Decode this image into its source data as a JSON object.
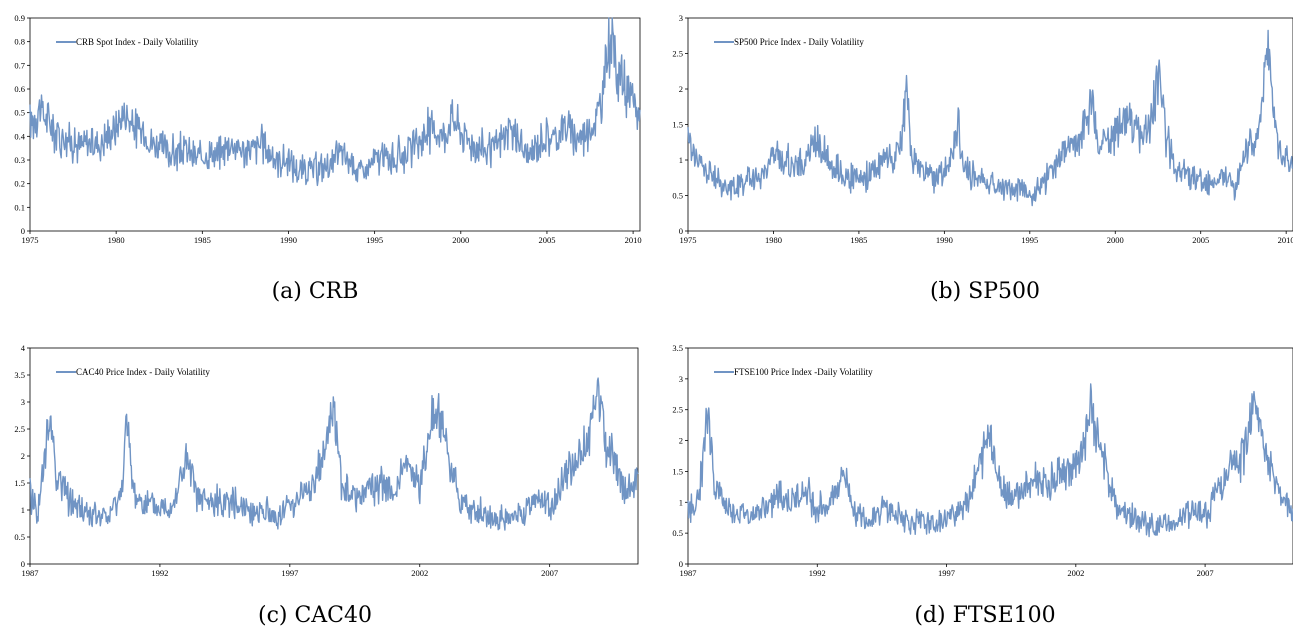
{
  "colors": {
    "series": "#7094c4",
    "axis": "#000000"
  },
  "chart_data": [
    {
      "type": "line",
      "caption": "(a) CRB",
      "legend": "CRB Spot Index - Daily Volatility",
      "legend_position": "top-left",
      "xlim": [
        1975,
        2010.4
      ],
      "ylim": [
        0,
        0.9
      ],
      "xticks": [
        "1975",
        "1980",
        "1985",
        "1990",
        "1995",
        "2000",
        "2005",
        "2010"
      ],
      "yticks": [
        "0",
        "0.1",
        "0.2",
        "0.3",
        "0.4",
        "0.5",
        "0.6",
        "0.7",
        "0.8",
        "0.9"
      ],
      "grid": false,
      "series": [
        {
          "name": "CRB Spot Index - Daily Volatility",
          "x": [
            1975,
            1975.5,
            1976,
            1976.5,
            1977,
            1977.5,
            1978,
            1978.5,
            1979,
            1979.5,
            1980,
            1980.5,
            1981,
            1981.5,
            1982,
            1982.5,
            1983,
            1983.5,
            1984,
            1984.5,
            1985,
            1985.5,
            1986,
            1986.5,
            1987,
            1987.5,
            1988,
            1988.5,
            1989,
            1989.5,
            1990,
            1990.5,
            1991,
            1991.5,
            1992,
            1992.5,
            1993,
            1993.5,
            1994,
            1994.5,
            1995,
            1995.5,
            1996,
            1996.5,
            1997,
            1997.5,
            1998,
            1998.5,
            1999,
            1999.5,
            2000,
            2000.5,
            2001,
            2001.5,
            2002,
            2002.5,
            2003,
            2003.5,
            2004,
            2004.5,
            2005,
            2005.5,
            2006,
            2006.5,
            2007,
            2007.5,
            2008,
            2008.3,
            2008.6,
            2009,
            2009.5,
            2010,
            2010.4
          ],
          "y": [
            0.45,
            0.52,
            0.47,
            0.42,
            0.4,
            0.37,
            0.36,
            0.38,
            0.37,
            0.4,
            0.44,
            0.5,
            0.44,
            0.42,
            0.38,
            0.36,
            0.33,
            0.33,
            0.34,
            0.31,
            0.31,
            0.33,
            0.32,
            0.37,
            0.36,
            0.33,
            0.35,
            0.37,
            0.32,
            0.3,
            0.29,
            0.26,
            0.25,
            0.26,
            0.27,
            0.28,
            0.33,
            0.3,
            0.26,
            0.25,
            0.3,
            0.31,
            0.3,
            0.32,
            0.33,
            0.37,
            0.42,
            0.43,
            0.4,
            0.48,
            0.42,
            0.38,
            0.36,
            0.34,
            0.35,
            0.4,
            0.42,
            0.36,
            0.3,
            0.38,
            0.4,
            0.39,
            0.45,
            0.41,
            0.4,
            0.43,
            0.5,
            0.6,
            0.83,
            0.72,
            0.6,
            0.53,
            0.49
          ]
        }
      ]
    },
    {
      "type": "line",
      "caption": "(b) SP500",
      "legend": "SP500 Price Index - Daily Volatility",
      "legend_position": "top-left",
      "xlim": [
        1975,
        2010.4
      ],
      "ylim": [
        0,
        3
      ],
      "xticks": [
        "1975",
        "1980",
        "1985",
        "1990",
        "1995",
        "2000",
        "2005",
        "2010"
      ],
      "yticks": [
        "0",
        "0.5",
        "1",
        "1.5",
        "2",
        "2.5",
        "3"
      ],
      "grid": false,
      "series": [
        {
          "name": "SP500 Price Index - Daily Volatility",
          "x": [
            1975,
            1975.5,
            1976,
            1976.5,
            1977,
            1977.5,
            1978,
            1978.5,
            1979,
            1979.5,
            1980,
            1980.5,
            1981,
            1981.5,
            1982,
            1982.5,
            1983,
            1983.5,
            1984,
            1984.5,
            1985,
            1985.5,
            1986,
            1986.5,
            1987,
            1987.5,
            1987.8,
            1988,
            1988.5,
            1989,
            1989.5,
            1990,
            1990.5,
            1990.8,
            1991,
            1991.5,
            1992,
            1992.5,
            1993,
            1993.5,
            1994,
            1994.5,
            1995,
            1995.5,
            1996,
            1996.5,
            1997,
            1997.5,
            1998,
            1998.6,
            1999,
            1999.5,
            2000,
            2000.5,
            2001,
            2001.5,
            2002,
            2002.6,
            2003,
            2003.5,
            2004,
            2004.5,
            2005,
            2005.5,
            2006,
            2006.5,
            2007,
            2007.5,
            2008,
            2008.5,
            2008.9,
            2009.2,
            2009.6,
            2010,
            2010.4
          ],
          "y": [
            1.3,
            1.0,
            0.85,
            0.75,
            0.65,
            0.6,
            0.65,
            0.75,
            0.7,
            0.85,
            1.1,
            1.0,
            0.95,
            0.9,
            1.05,
            1.3,
            1.1,
            0.9,
            0.85,
            0.75,
            0.7,
            0.75,
            0.9,
            1.05,
            1.0,
            1.2,
            2.2,
            1.1,
            0.9,
            0.8,
            0.75,
            0.8,
            1.1,
            1.5,
            1.0,
            0.8,
            0.75,
            0.7,
            0.65,
            0.6,
            0.6,
            0.65,
            0.5,
            0.6,
            0.75,
            0.9,
            1.1,
            1.2,
            1.3,
            1.9,
            1.2,
            1.3,
            1.4,
            1.6,
            1.5,
            1.3,
            1.5,
            2.25,
            1.3,
            0.9,
            0.8,
            0.75,
            0.7,
            0.65,
            0.7,
            0.8,
            0.6,
            0.95,
            1.3,
            1.6,
            2.75,
            1.8,
            1.2,
            1.0,
            0.85
          ]
        }
      ]
    },
    {
      "type": "line",
      "caption": "(c) CAC40",
      "legend": "CAC40 Price Index - Daily Volatility",
      "legend_position": "top-left",
      "xlim": [
        1987,
        2010.4
      ],
      "ylim": [
        0,
        4
      ],
      "xticks": [
        "1987",
        "1992",
        "1997",
        "2002",
        "2007"
      ],
      "yticks": [
        "0",
        "0.5",
        "1",
        "1.5",
        "2",
        "2.5",
        "3",
        "3.5",
        "4"
      ],
      "grid": false,
      "series": [
        {
          "name": "CAC40 Price Index - Daily Volatility",
          "x": [
            1987,
            1987.3,
            1987.8,
            1988,
            1988.5,
            1989,
            1989.5,
            1990,
            1990.5,
            1990.7,
            1991,
            1991.5,
            1992,
            1992.5,
            1993,
            1993.5,
            1994,
            1994.5,
            1995,
            1995.5,
            1996,
            1996.5,
            1997,
            1997.5,
            1998,
            1998.7,
            1999,
            1999.5,
            2000,
            2000.5,
            2001,
            2001.5,
            2002,
            2002.6,
            2003,
            2003.5,
            2004,
            2004.5,
            2005,
            2005.5,
            2006,
            2006.5,
            2007,
            2007.5,
            2008,
            2008.5,
            2008.8,
            2009.2,
            2009.6,
            2010,
            2010.4
          ],
          "y": [
            1.3,
            0.95,
            2.8,
            1.7,
            1.2,
            1.0,
            0.9,
            0.85,
            1.3,
            2.6,
            1.3,
            1.1,
            1.0,
            1.1,
            1.9,
            1.2,
            1.1,
            1.2,
            1.1,
            1.0,
            1.0,
            0.85,
            1.1,
            1.3,
            1.5,
            2.9,
            1.4,
            1.2,
            1.4,
            1.5,
            1.3,
            1.8,
            1.4,
            3.0,
            2.3,
            1.2,
            1.0,
            0.9,
            0.8,
            0.85,
            0.9,
            1.3,
            1.0,
            1.5,
            1.9,
            2.3,
            3.3,
            2.2,
            1.8,
            1.3,
            1.5
          ]
        }
      ]
    },
    {
      "type": "line",
      "caption": "(d) FTSE100",
      "legend": "FTSE100 Price Index -Daily Volatility",
      "legend_position": "top-left",
      "xlim": [
        1987,
        2010.4
      ],
      "ylim": [
        0,
        3.5
      ],
      "xticks": [
        "1987",
        "1992",
        "1997",
        "2002",
        "2007"
      ],
      "yticks": [
        "0",
        "0.5",
        "1",
        "1.5",
        "2",
        "2.5",
        "3",
        "3.5"
      ],
      "grid": false,
      "series": [
        {
          "name": "FTSE100 Price Index -Daily Volatility",
          "x": [
            1987,
            1987.4,
            1987.8,
            1988,
            1988.5,
            1989,
            1989.5,
            1990,
            1990.5,
            1991,
            1991.5,
            1992,
            1992.5,
            1993,
            1993.5,
            1994,
            1994.5,
            1995,
            1995.5,
            1996,
            1996.5,
            1997,
            1997.5,
            1998,
            1998.7,
            1999,
            1999.5,
            2000,
            2000.5,
            2001,
            2001.5,
            2002,
            2002.6,
            2003,
            2003.5,
            2004,
            2004.5,
            2005,
            2005.5,
            2006,
            2006.5,
            2007,
            2007.5,
            2008,
            2008.5,
            2008.9,
            2009.2,
            2009.6,
            2010,
            2010.4
          ],
          "y": [
            0.9,
            1.0,
            2.5,
            1.3,
            0.9,
            0.85,
            0.8,
            0.9,
            1.1,
            1.0,
            1.2,
            0.9,
            1.0,
            1.5,
            0.8,
            0.7,
            0.95,
            0.8,
            0.7,
            0.65,
            0.65,
            0.7,
            0.9,
            1.2,
            2.2,
            1.3,
            1.1,
            1.2,
            1.4,
            1.3,
            1.6,
            1.5,
            2.5,
            1.8,
            1.0,
            0.8,
            0.7,
            0.6,
            0.6,
            0.65,
            0.9,
            0.8,
            1.2,
            1.5,
            1.8,
            2.85,
            2.0,
            1.4,
            1.1,
            0.8
          ]
        }
      ]
    }
  ]
}
